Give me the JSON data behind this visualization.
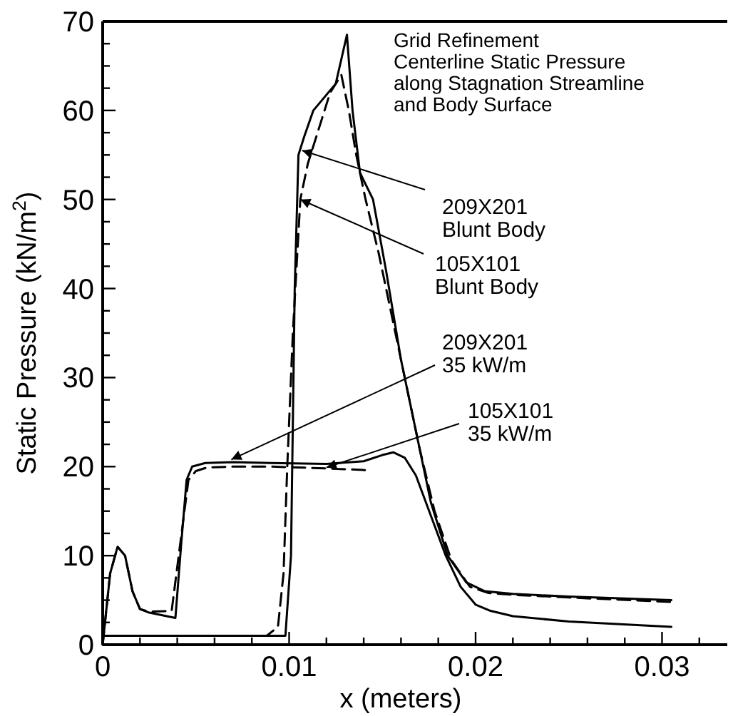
{
  "chart_data": {
    "type": "line",
    "title": "Grid Refinement\nCenterline Static Pressure\nalong Stagnation Streamline\nand Body Surface",
    "xlabel": "x (meters)",
    "ylabel": "Static Pressure (kN/m$^{2}$)",
    "xlim": [
      0,
      0.0335
    ],
    "ylim": [
      0,
      70
    ],
    "xticks": [
      0,
      {
        "value": 0.002,
        "label": null
      },
      {
        "value": 0.004,
        "label": null
      },
      {
        "value": 0.006,
        "label": null
      },
      {
        "value": 0.008,
        "label": null
      },
      0.01,
      {
        "value": 0.012,
        "label": null
      },
      {
        "value": 0.014,
        "label": null
      },
      {
        "value": 0.016,
        "label": null
      },
      {
        "value": 0.018,
        "label": null
      },
      0.02,
      {
        "value": 0.022,
        "label": null
      },
      {
        "value": 0.024,
        "label": null
      },
      {
        "value": 0.026,
        "label": null
      },
      {
        "value": 0.028,
        "label": null
      },
      0.03,
      {
        "value": 0.032,
        "label": null
      }
    ],
    "yticks": [
      0,
      {
        "value": 2.5,
        "label": null
      },
      {
        "value": 5,
        "label": null
      },
      {
        "value": 7.5,
        "label": null
      },
      10,
      {
        "value": 12.5,
        "label": null
      },
      {
        "value": 15,
        "label": null
      },
      {
        "value": 17.5,
        "label": null
      },
      20,
      {
        "value": 22.5,
        "label": null
      },
      {
        "value": 25,
        "label": null
      },
      {
        "value": 27.5,
        "label": null
      },
      30,
      {
        "value": 32.5,
        "label": null
      },
      {
        "value": 35,
        "label": null
      },
      {
        "value": 37.5,
        "label": null
      },
      40,
      {
        "value": 42.5,
        "label": null
      },
      {
        "value": 45,
        "label": null
      },
      {
        "value": 47.5,
        "label": null
      },
      50,
      {
        "value": 52.5,
        "label": null
      },
      {
        "value": 55,
        "label": null
      },
      {
        "value": 57.5,
        "label": null
      },
      60,
      {
        "value": 62.5,
        "label": null
      },
      {
        "value": 65,
        "label": null
      },
      {
        "value": 67.5,
        "label": null
      },
      70
    ],
    "grid": false,
    "marker": "none",
    "series": [
      {
        "color": "#000000",
        "line_style": "solid",
        "x": [
          0,
          0.005,
          0.0098,
          0.0101,
          0.0103,
          0.0105,
          0.0108,
          0.0113,
          0.0119,
          0.0125,
          0.0131,
          0.0134,
          0.0138,
          0.0145,
          0.0152,
          0.016,
          0.0168,
          0.0176,
          0.0185,
          0.0195,
          0.0205,
          0.022,
          0.025,
          0.0305
        ],
        "values": [
          1,
          1,
          1,
          10,
          40,
          55,
          57,
          60,
          61.5,
          63,
          68.5,
          60,
          53,
          50,
          42,
          32,
          24,
          16,
          10,
          7,
          6,
          5.7,
          5.4,
          5
        ]
      },
      {
        "color": "#000000",
        "line_style": "dashed",
        "x": [
          0,
          0.005,
          0.0088,
          0.0094,
          0.0097,
          0.0099,
          0.0102,
          0.0106,
          0.011,
          0.0116,
          0.0122,
          0.0128,
          0.0132,
          0.0136,
          0.0141,
          0.0148,
          0.0155,
          0.0163,
          0.017,
          0.0178,
          0.0187,
          0.0197,
          0.0207,
          0.022,
          0.025,
          0.0305
        ],
        "values": [
          1,
          1,
          1,
          2,
          8,
          20,
          35,
          50,
          54,
          58,
          62,
          64,
          60,
          55,
          50,
          44,
          37,
          29,
          22,
          15,
          9.5,
          6.5,
          5.8,
          5.6,
          5.3,
          4.8
        ]
      },
      {
        "color": "#000000",
        "line_style": "solid",
        "x": [
          0,
          0.0004,
          0.0008,
          0.0012,
          0.0016,
          0.002,
          0.0025,
          0.0039,
          0.0042,
          0.0045,
          0.0048,
          0.0055,
          0.007,
          0.009,
          0.012,
          0.014,
          0.015,
          0.0156,
          0.0162,
          0.0168,
          0.0176,
          0.0184,
          0.0192,
          0.02,
          0.0208,
          0.022,
          0.025,
          0.0305
        ],
        "values": [
          0,
          8,
          11,
          10,
          6,
          4,
          3.6,
          3,
          11,
          18.5,
          20,
          20.4,
          20.5,
          20.4,
          20.3,
          20.6,
          21.3,
          21.6,
          21,
          19,
          14.5,
          10,
          6.5,
          4.5,
          3.8,
          3.2,
          2.6,
          2
        ]
      },
      {
        "color": "#000000",
        "line_style": "dashed",
        "x": [
          0,
          0.0004,
          0.0008,
          0.0012,
          0.0016,
          0.002,
          0.0025,
          0.0037,
          0.0042,
          0.0046,
          0.005,
          0.0056,
          0.007,
          0.009,
          0.012,
          0.0142
        ],
        "values": [
          0,
          8,
          11,
          10,
          6,
          4,
          3.7,
          3.8,
          12,
          18.5,
          19.5,
          19.9,
          20,
          20,
          19.8,
          19.6
        ]
      }
    ],
    "annotations": [
      {
        "text": "209X201\nBlunt Body",
        "x": 0.0107,
        "y": 55.5
      },
      {
        "text": "105X101\nBlunt Body",
        "x": 0.0106,
        "y": 50
      },
      {
        "text": "209X201\n35 kW/m",
        "x": 0.0069,
        "y": 20.8
      },
      {
        "text": "105X101\n35 kW/m",
        "x": 0.012,
        "y": 19.9
      }
    ]
  }
}
